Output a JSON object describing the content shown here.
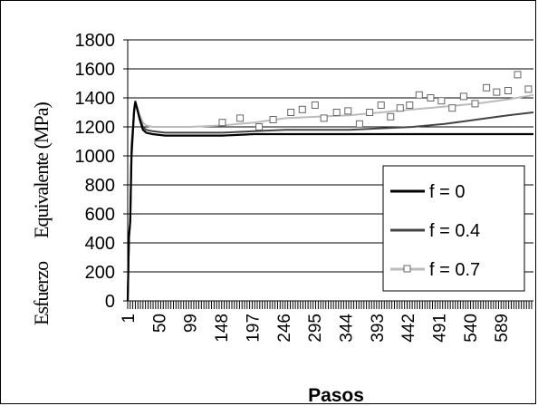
{
  "chart_data": {
    "type": "line",
    "xlabel": "Pasos",
    "ylabel_parts": [
      "Esfuerzo",
      "Equivalente (MPa)"
    ],
    "ylim": [
      0,
      1800
    ],
    "yticks": [
      0,
      200,
      400,
      600,
      800,
      1000,
      1200,
      1400,
      1600,
      1800
    ],
    "xlim": [
      1,
      640
    ],
    "xticks": [
      1,
      50,
      99,
      148,
      197,
      246,
      295,
      344,
      393,
      442,
      491,
      540,
      589
    ],
    "grid": "horizontal",
    "legend_position": "right",
    "series": [
      {
        "name": "f = 0",
        "color": "#000000",
        "style": "line",
        "x": [
          1,
          3,
          5,
          7,
          9,
          11,
          13,
          15,
          20,
          25,
          30,
          40,
          60,
          80,
          100,
          150,
          200,
          250,
          300,
          350,
          400,
          450,
          500,
          550,
          600,
          640
        ],
        "y": [
          0,
          450,
          550,
          1000,
          1150,
          1300,
          1370,
          1340,
          1250,
          1180,
          1160,
          1150,
          1140,
          1140,
          1140,
          1140,
          1150,
          1150,
          1150,
          1150,
          1150,
          1150,
          1150,
          1150,
          1150,
          1150
        ]
      },
      {
        "name": "f = 0.4",
        "color": "#444444",
        "style": "line",
        "x": [
          1,
          3,
          5,
          7,
          9,
          11,
          13,
          15,
          20,
          25,
          30,
          40,
          60,
          80,
          100,
          150,
          200,
          250,
          300,
          350,
          400,
          450,
          500,
          550,
          600,
          640
        ],
        "y": [
          0,
          430,
          540,
          1050,
          1180,
          1320,
          1380,
          1340,
          1260,
          1200,
          1180,
          1170,
          1160,
          1160,
          1160,
          1160,
          1170,
          1180,
          1180,
          1180,
          1190,
          1200,
          1220,
          1250,
          1280,
          1300
        ]
      },
      {
        "name": "f = 0.7",
        "color": "#bbbbbb",
        "style": "line-marker",
        "x": [
          1,
          3,
          5,
          7,
          9,
          11,
          13,
          15,
          20,
          25,
          30,
          40,
          60,
          80,
          100,
          150,
          200,
          250,
          300,
          350,
          400,
          450,
          500,
          550,
          600,
          640
        ],
        "y": [
          0,
          420,
          560,
          1100,
          1200,
          1330,
          1380,
          1350,
          1280,
          1230,
          1210,
          1200,
          1200,
          1200,
          1200,
          1210,
          1230,
          1260,
          1270,
          1280,
          1300,
          1320,
          1340,
          1360,
          1390,
          1420
        ],
        "markers_x": [
          150,
          178,
          208,
          230,
          258,
          276,
          296,
          310,
          330,
          348,
          366,
          382,
          400,
          415,
          430,
          445,
          460,
          478,
          495,
          512,
          530,
          548,
          566,
          582,
          600,
          615,
          632
        ],
        "markers_y": [
          1230,
          1260,
          1200,
          1250,
          1300,
          1320,
          1350,
          1260,
          1300,
          1310,
          1220,
          1300,
          1350,
          1270,
          1330,
          1350,
          1420,
          1400,
          1380,
          1330,
          1410,
          1360,
          1470,
          1440,
          1450,
          1560,
          1460
        ]
      }
    ]
  }
}
